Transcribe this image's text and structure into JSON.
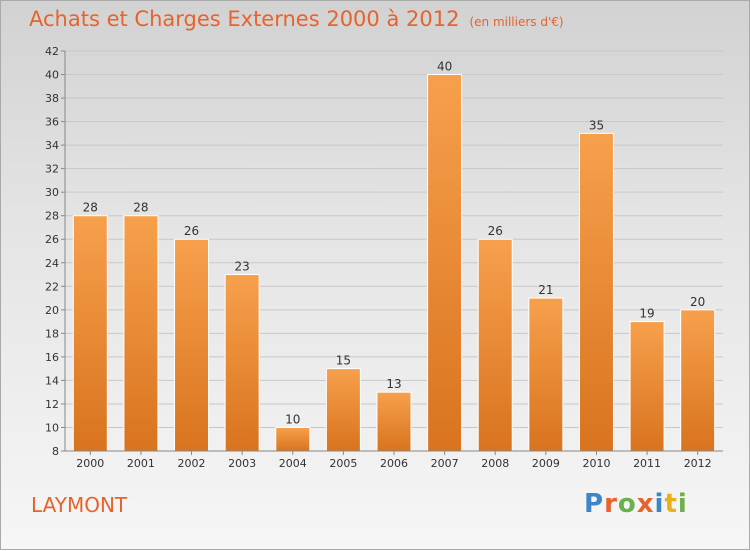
{
  "chart_data": {
    "type": "bar",
    "title": "Achats et Charges Externes 2000 à 2012",
    "subtitle": "(en milliers d'€)",
    "categories": [
      "2000",
      "2001",
      "2002",
      "2003",
      "2004",
      "2005",
      "2006",
      "2007",
      "2008",
      "2009",
      "2010",
      "2011",
      "2012"
    ],
    "values": [
      28,
      28,
      26,
      23,
      10,
      15,
      13,
      40,
      26,
      21,
      35,
      19,
      20
    ],
    "ylim": [
      8,
      42
    ],
    "yticks": [
      8,
      10,
      12,
      14,
      16,
      18,
      20,
      22,
      24,
      26,
      28,
      30,
      32,
      34,
      36,
      38,
      40,
      42
    ],
    "xlabel": "",
    "ylabel": "",
    "grid": true,
    "bar_color": "#f0913e"
  },
  "footer": {
    "commune": "LAYMONT",
    "logo_letters": [
      "P",
      "r",
      "o",
      "x",
      "i",
      "t",
      "i"
    ],
    "logo_colors": [
      "#3a86c8",
      "#e8632b",
      "#6ab04c",
      "#e8632b",
      "#3a86c8",
      "#e8b020",
      "#6ab04c"
    ]
  }
}
